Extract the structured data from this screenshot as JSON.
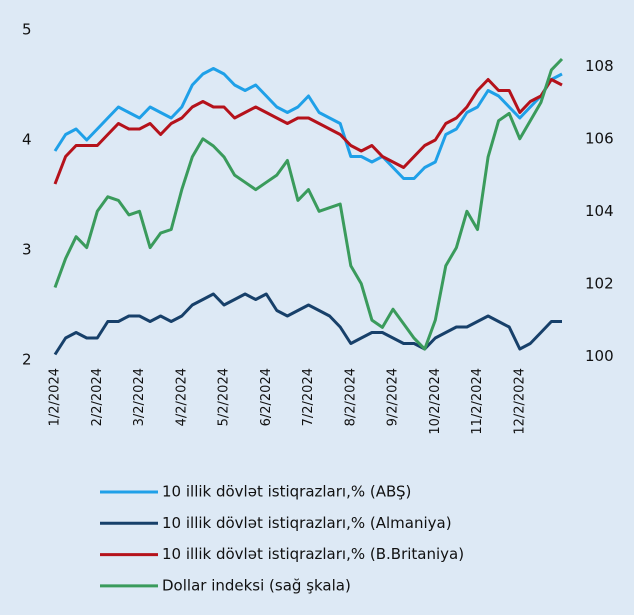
{
  "chart_data": {
    "type": "line",
    "categories": [
      "1/2/2024",
      null,
      null,
      null,
      "2/2/2024",
      null,
      null,
      null,
      "3/2/2024",
      null,
      null,
      null,
      "4/2/2024",
      null,
      null,
      null,
      "5/2/2024",
      null,
      null,
      null,
      "6/2/2024",
      null,
      null,
      null,
      "7/2/2024",
      null,
      null,
      null,
      "8/2/2024",
      null,
      null,
      null,
      "9/2/2024",
      null,
      null,
      null,
      "10/2/2024",
      null,
      null,
      null,
      "11/2/2024",
      null,
      null,
      null,
      "12/2/2024",
      null,
      null,
      null,
      null
    ],
    "series": [
      {
        "name": "10 illik dövlət istiqrazları,% (ABŞ)",
        "color": "#1fa0e8",
        "values": [
          3.9,
          4.05,
          4.1,
          4.0,
          4.1,
          4.2,
          4.3,
          4.25,
          4.2,
          4.3,
          4.25,
          4.2,
          4.3,
          4.5,
          4.6,
          4.65,
          4.6,
          4.5,
          4.45,
          4.5,
          4.4,
          4.3,
          4.25,
          4.3,
          4.4,
          4.25,
          4.2,
          4.15,
          3.85,
          3.85,
          3.8,
          3.85,
          3.75,
          3.65,
          3.65,
          3.75,
          3.8,
          4.05,
          4.1,
          4.25,
          4.3,
          4.45,
          4.4,
          4.3,
          4.2,
          4.3,
          4.4,
          4.55,
          4.6
        ]
      },
      {
        "name": "10 illik dövlət istiqrazları,% (Almaniya)",
        "color": "#17406a",
        "values": [
          2.05,
          2.2,
          2.25,
          2.2,
          2.2,
          2.35,
          2.35,
          2.4,
          2.4,
          2.35,
          2.4,
          2.35,
          2.4,
          2.5,
          2.55,
          2.6,
          2.5,
          2.55,
          2.6,
          2.55,
          2.6,
          2.45,
          2.4,
          2.45,
          2.5,
          2.45,
          2.4,
          2.3,
          2.15,
          2.2,
          2.25,
          2.25,
          2.2,
          2.15,
          2.15,
          2.1,
          2.2,
          2.25,
          2.3,
          2.3,
          2.35,
          2.4,
          2.35,
          2.3,
          2.1,
          2.15,
          2.25,
          2.35,
          2.35
        ]
      },
      {
        "name": "10 illik dövlət istiqrazları,% (B.Britaniya)",
        "color": "#b5121b",
        "values": [
          3.6,
          3.85,
          3.95,
          3.95,
          3.95,
          4.05,
          4.15,
          4.1,
          4.1,
          4.15,
          4.05,
          4.15,
          4.2,
          4.3,
          4.35,
          4.3,
          4.3,
          4.2,
          4.25,
          4.3,
          4.25,
          4.2,
          4.15,
          4.2,
          4.2,
          4.15,
          4.1,
          4.05,
          3.95,
          3.9,
          3.95,
          3.85,
          3.8,
          3.75,
          3.85,
          3.95,
          4.0,
          4.15,
          4.2,
          4.3,
          4.45,
          4.55,
          4.45,
          4.45,
          4.25,
          4.35,
          4.4,
          4.55,
          4.5
        ]
      },
      {
        "name": "Dollar indeksi (sağ şkala)",
        "color": "#3a9b5c",
        "axis": "y2",
        "values": [
          101.9,
          102.7,
          103.3,
          103.0,
          104.0,
          104.4,
          104.3,
          103.9,
          104.0,
          103.0,
          103.4,
          103.5,
          104.6,
          105.5,
          106.0,
          105.8,
          105.5,
          105.0,
          104.8,
          104.6,
          104.8,
          105.0,
          105.4,
          104.3,
          104.6,
          104.0,
          104.1,
          104.2,
          102.5,
          102.0,
          101.0,
          100.8,
          101.3,
          100.9,
          100.5,
          100.2,
          101.0,
          102.5,
          103.0,
          104.0,
          103.5,
          105.5,
          106.5,
          106.7,
          106.0,
          106.5,
          107.0,
          107.9,
          108.2
        ]
      }
    ],
    "ylim": [
      2,
      5
    ],
    "yticks": [
      2,
      3,
      4,
      5
    ],
    "y2lim": [
      99.9,
      109.0
    ],
    "y2ticks": [
      100,
      102,
      104,
      106,
      108
    ]
  }
}
